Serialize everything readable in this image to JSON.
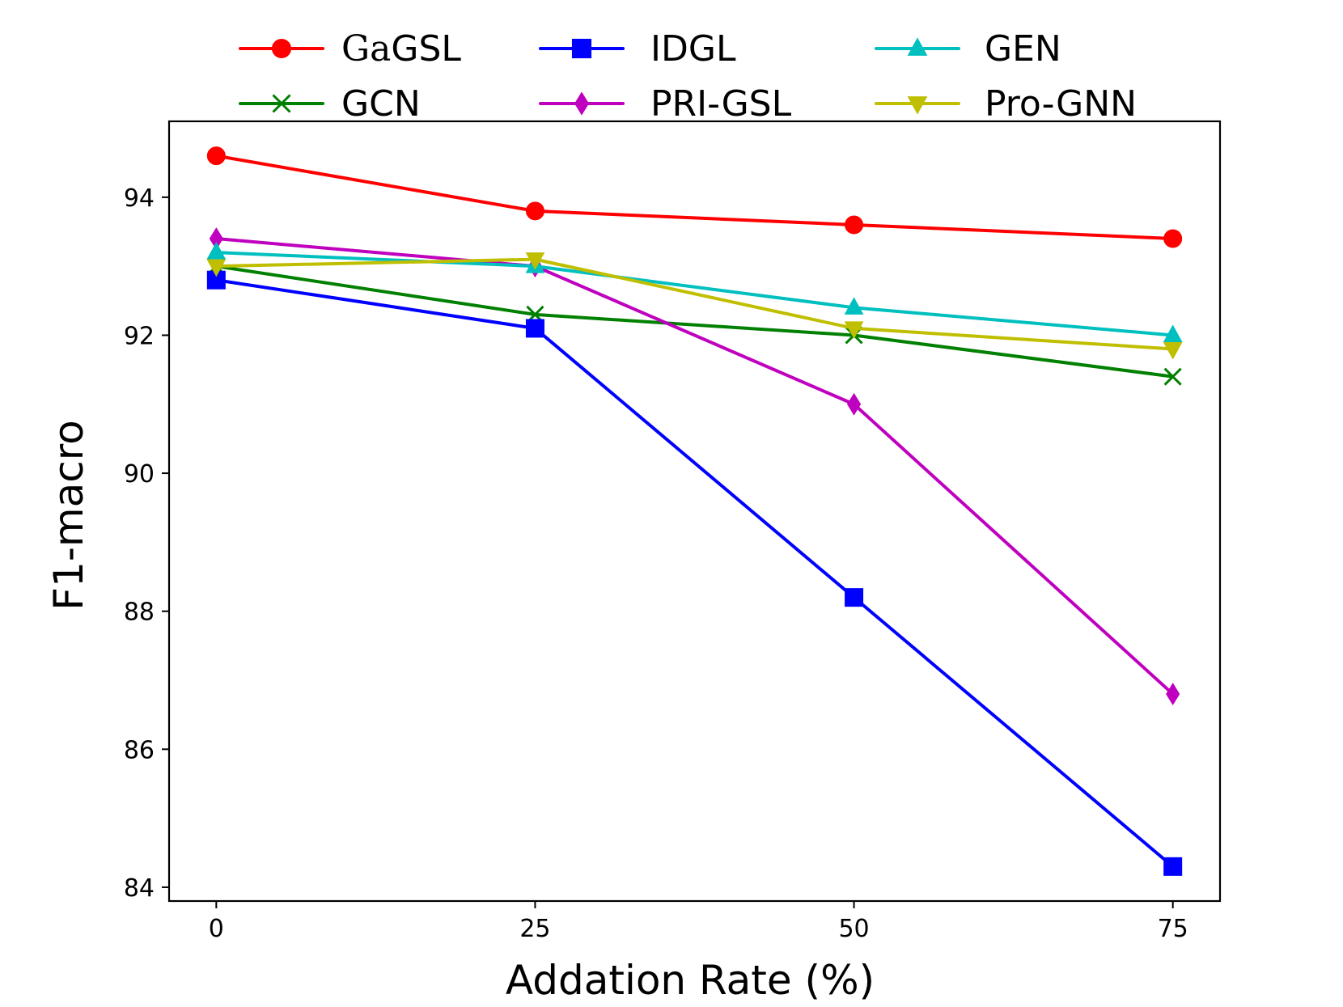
{
  "chart_data": {
    "type": "line",
    "title": "",
    "xlabel": "Addation Rate (%)",
    "ylabel": "F1-macro",
    "x": [
      0,
      25,
      50,
      75
    ],
    "x_tick_labels": [
      "0",
      "25",
      "50",
      "75"
    ],
    "y_ticks": [
      84,
      86,
      88,
      90,
      92,
      94
    ],
    "y_tick_labels": [
      "84",
      "86",
      "88",
      "90",
      "92",
      "94"
    ],
    "xlim": [
      -3.7,
      78.7
    ],
    "ylim": [
      83.8,
      95.1
    ],
    "grid": false,
    "legend_position": "top, above plot, 3 columns",
    "series": [
      {
        "name": "GaGSL",
        "legend_prefix_serif": "Ga",
        "legend_suffix": "GSL",
        "values": [
          94.6,
          93.8,
          93.6,
          93.4
        ],
        "color": "#ff0000",
        "marker": "circle"
      },
      {
        "name": "GCN",
        "values": [
          93.0,
          92.3,
          92.0,
          91.4
        ],
        "color": "#008000",
        "marker": "x"
      },
      {
        "name": "IDGL",
        "values": [
          92.8,
          92.1,
          88.2,
          84.3
        ],
        "color": "#0000ff",
        "marker": "square"
      },
      {
        "name": "PRI-GSL",
        "values": [
          93.4,
          93.0,
          91.0,
          86.8
        ],
        "color": "#bf00bf",
        "marker": "diamond"
      },
      {
        "name": "GEN",
        "values": [
          93.2,
          93.0,
          92.4,
          92.0
        ],
        "color": "#00bfbf",
        "marker": "triangle-up"
      },
      {
        "name": "Pro-GNN",
        "values": [
          93.0,
          93.1,
          92.1,
          91.8
        ],
        "color": "#bfbf00",
        "marker": "triangle-down"
      }
    ]
  }
}
